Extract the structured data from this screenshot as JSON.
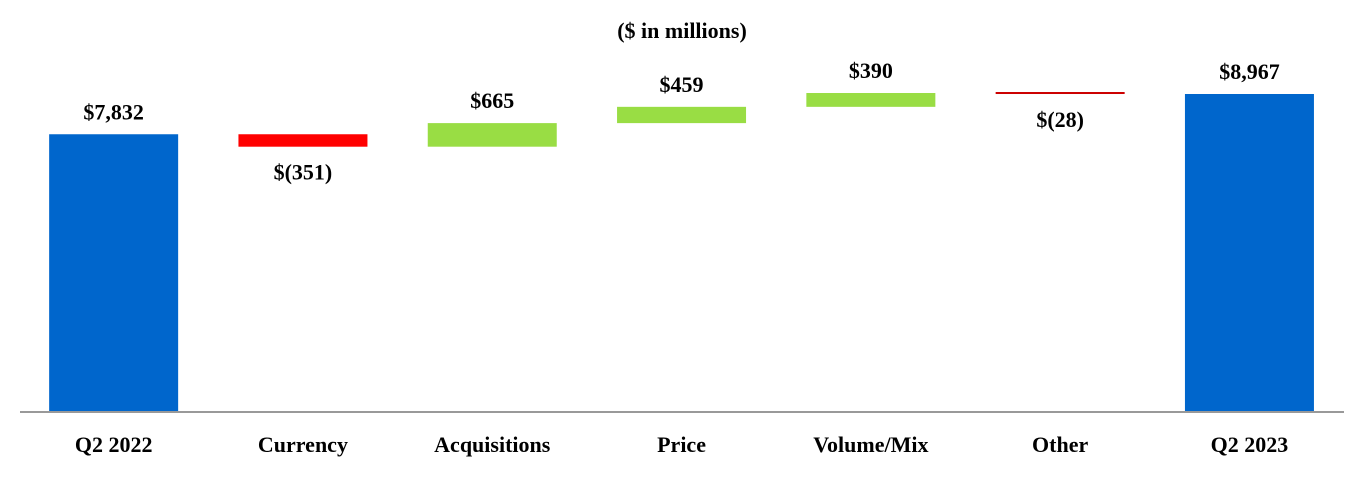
{
  "chart_data": {
    "type": "bar",
    "subtype": "waterfall",
    "subtitle": "($ in millions)",
    "categories": [
      "Q2 2022",
      "Currency",
      "Acquisitions",
      "Price",
      "Volume/Mix",
      "Other",
      "Q2 2023"
    ],
    "values": [
      7832,
      -351,
      665,
      459,
      390,
      -28,
      8967
    ],
    "bar_kinds": [
      "total",
      "change",
      "change",
      "change",
      "change",
      "change",
      "total"
    ],
    "data_labels": [
      "$7,832",
      "$(351)",
      "$665",
      "$459",
      "$390",
      "$(28)",
      "$8,967"
    ],
    "grid": false,
    "legend": "none",
    "colors": {
      "total": "#0066CC",
      "increase": "#99DD44",
      "decrease": "#FF0000",
      "decrease_line": "#CC0000",
      "axis": "#999999"
    }
  }
}
